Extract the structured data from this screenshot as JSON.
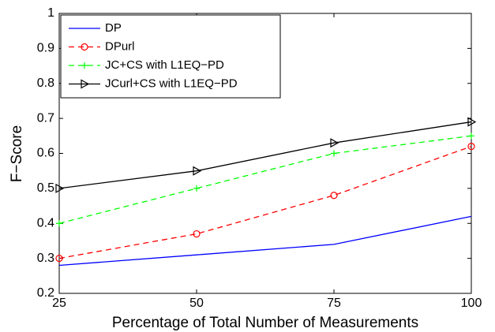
{
  "chart_data": {
    "type": "line",
    "xlabel": "Percentage of Total Number of Measurements",
    "ylabel": "F−Score",
    "x": [
      25,
      50,
      75,
      100
    ],
    "xlim": [
      25,
      100
    ],
    "xticks": [
      25,
      50,
      75,
      100
    ],
    "ylim": [
      0.2,
      1
    ],
    "yticks": [
      0.2,
      0.3,
      0.4,
      0.5,
      0.6,
      0.7,
      0.8,
      0.9,
      1
    ],
    "grid": false,
    "legend": "upper left",
    "series": [
      {
        "name": "DP",
        "color": "#0000ff",
        "linestyle": "solid",
        "marker": "none",
        "values": [
          0.28,
          0.31,
          0.34,
          0.42
        ]
      },
      {
        "name": "DPurl",
        "color": "#ff0000",
        "linestyle": "dashed",
        "marker": "circle",
        "values": [
          0.3,
          0.37,
          0.48,
          0.62
        ]
      },
      {
        "name": "JC+CS with L1EQ−PD",
        "color": "#00ff00",
        "linestyle": "dashed",
        "marker": "plus",
        "values": [
          0.4,
          0.5,
          0.6,
          0.65
        ]
      },
      {
        "name": "JCurl+CS with L1EQ−PD",
        "color": "#000000",
        "linestyle": "solid",
        "marker": "triangle-right",
        "values": [
          0.5,
          0.55,
          0.63,
          0.69
        ]
      }
    ]
  }
}
